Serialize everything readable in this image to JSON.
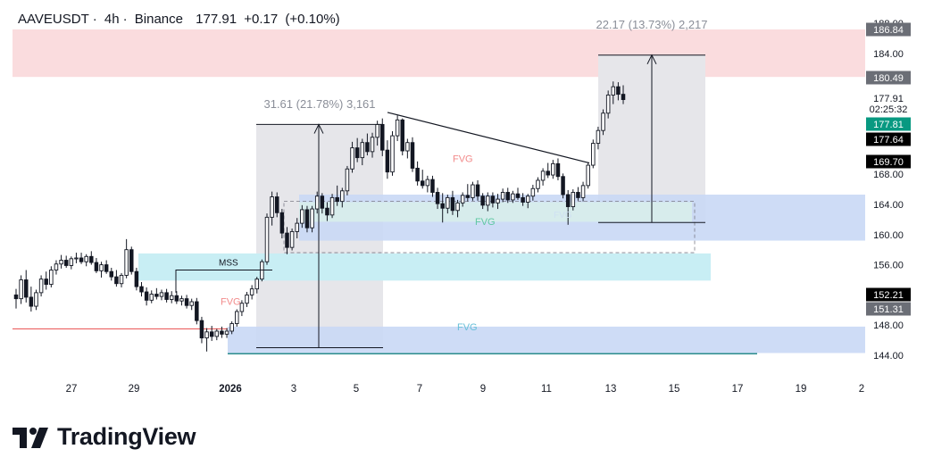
{
  "header": {
    "symbol": "AAVEUSDT",
    "interval": "4h",
    "exchange": "Binance",
    "price": "177.91",
    "change": "+0.17",
    "change_pct": "(+0.10%)"
  },
  "brand": {
    "name": "TradingView"
  },
  "colors": {
    "up_candle": "#ffffff",
    "down_candle": "#131722",
    "supply_zone": "#f9d6d8",
    "demand_zone": "#c9d8f5",
    "fvg_zone": "#c8eef4",
    "measure_box": "#e6e6ea",
    "last_price": "#089981",
    "current_price_label": "#000000"
  },
  "chart_data": {
    "type": "candlestick",
    "x_tick_labels": [
      "27",
      "29",
      "2026",
      "3",
      "5",
      "7",
      "9",
      "11",
      "13",
      "15",
      "17",
      "19",
      "2"
    ],
    "y_tick_labels": [
      "188.00",
      "184.00",
      "168.00",
      "164.00",
      "160.00",
      "156.00",
      "148.00",
      "144.00"
    ],
    "y_range": [
      143,
      189
    ],
    "price_labels": [
      {
        "value": "186.84",
        "style": "grey"
      },
      {
        "value": "180.49",
        "style": "grey"
      },
      {
        "value": "177.91",
        "style": "plain"
      },
      {
        "value": "02:25:32",
        "style": "plain"
      },
      {
        "value": "177.81",
        "style": "green"
      },
      {
        "value": "177.64",
        "style": "black"
      },
      {
        "value": "169.70",
        "style": "black"
      },
      {
        "value": "152.21",
        "style": "black"
      },
      {
        "value": "151.31",
        "style": "grey"
      }
    ],
    "annotations": {
      "measure_1": "31.61 (21.78%) 3,161",
      "measure_2": "22.17 (13.73%) 2,217",
      "mss": "MSS",
      "fvg_labels": [
        "FVG",
        "FVG",
        "FVG",
        "FVG",
        "FVG"
      ]
    },
    "zones": [
      {
        "name": "supply",
        "from": "Jan 13 (est.)",
        "to": "end",
        "low": 180.9,
        "high": 187.2
      },
      {
        "name": "fvg-cyan",
        "low": 153.9,
        "high": 157.5
      },
      {
        "name": "demand-upper",
        "low": 159.2,
        "high": 165.3
      },
      {
        "name": "demand-lower",
        "low": 144.3,
        "high": 147.8
      }
    ],
    "candles": [
      [
        0,
        152,
        152.8,
        150.2,
        151.5
      ],
      [
        1,
        151.5,
        154.6,
        150.8,
        154
      ],
      [
        2,
        154,
        155.3,
        151,
        151.7
      ],
      [
        3,
        151.7,
        153.1,
        149.8,
        150.5
      ],
      [
        4,
        150.5,
        152.7,
        150,
        152.3
      ],
      [
        5,
        152.3,
        154.6,
        151.8,
        154.1
      ],
      [
        6,
        154.1,
        155.1,
        152.7,
        153.4
      ],
      [
        7,
        153.4,
        155.8,
        153,
        155.3
      ],
      [
        8,
        155.3,
        156.6,
        154.7,
        156.1
      ],
      [
        9,
        156.1,
        157.3,
        155.5,
        156.6
      ],
      [
        10,
        156.6,
        157.2,
        155.6,
        155.9
      ],
      [
        11,
        155.9,
        157.1,
        155.4,
        156.8
      ],
      [
        12,
        156.8,
        157.6,
        156.2,
        156.9
      ],
      [
        13,
        156.9,
        157.6,
        156.1,
        156.4
      ],
      [
        14,
        156.4,
        157.4,
        155.8,
        157.1
      ],
      [
        15,
        157.1,
        157.8,
        156,
        156.3
      ],
      [
        16,
        156.3,
        156.9,
        154.9,
        155.2
      ],
      [
        17,
        155.2,
        156.4,
        154.3,
        156
      ],
      [
        18,
        156,
        156.6,
        154.8,
        155.1
      ],
      [
        19,
        155.1,
        155.6,
        153.9,
        154.4
      ],
      [
        20,
        154.4,
        155.3,
        153.1,
        153.5
      ],
      [
        21,
        153.5,
        154.9,
        153,
        154.6
      ],
      [
        22,
        154.6,
        159.4,
        154.2,
        158
      ],
      [
        23,
        158,
        158.4,
        154.7,
        155.1
      ],
      [
        24,
        155.1,
        155.6,
        152.6,
        153.1
      ],
      [
        25,
        153.1,
        153.7,
        151.8,
        152.4
      ],
      [
        26,
        152.4,
        153,
        150.6,
        151.3
      ],
      [
        27,
        151.3,
        152.6,
        150.9,
        152.1
      ],
      [
        28,
        152.1,
        152.9,
        151.4,
        151.8
      ],
      [
        29,
        151.8,
        152.7,
        151.3,
        152.3
      ],
      [
        30,
        152.3,
        152.8,
        151,
        151.4
      ],
      [
        31,
        151.4,
        152.5,
        150.9,
        151.9
      ],
      [
        32,
        151.9,
        152.5,
        150.8,
        151.2
      ],
      [
        33,
        151.2,
        151.9,
        150.6,
        151.5
      ],
      [
        34,
        151.5,
        152,
        150.2,
        150.6
      ],
      [
        35,
        150.6,
        151.5,
        150,
        151.1
      ],
      [
        36,
        151.1,
        151.6,
        148.1,
        148.6
      ],
      [
        37,
        148.6,
        149.1,
        145.6,
        146.3
      ],
      [
        38,
        146.3,
        147.6,
        144.5,
        147.1
      ],
      [
        39,
        147.1,
        147.9,
        145.9,
        146.5
      ],
      [
        40,
        146.5,
        147.5,
        146,
        147.2
      ],
      [
        41,
        147.2,
        147.8,
        146.3,
        146.8
      ],
      [
        42,
        146.8,
        147.6,
        146.3,
        147.2
      ],
      [
        43,
        147.2,
        148.5,
        146.8,
        148.2
      ],
      [
        44,
        148.2,
        150.1,
        147.8,
        149.8
      ],
      [
        45,
        149.8,
        151.3,
        149.2,
        150.9
      ],
      [
        46,
        150.9,
        152.4,
        150.4,
        152
      ],
      [
        47,
        152,
        153.3,
        151.4,
        152.8
      ],
      [
        48,
        152.8,
        154.4,
        152.2,
        154.1
      ],
      [
        49,
        154.1,
        156.7,
        153.8,
        156.4
      ],
      [
        50,
        156.4,
        162.8,
        156,
        162.3
      ],
      [
        51,
        162.3,
        165.7,
        161.2,
        165
      ],
      [
        52,
        165,
        165.6,
        162.3,
        162.9
      ],
      [
        53,
        162.9,
        163.4,
        159.5,
        160.2
      ],
      [
        54,
        160.2,
        161,
        157.4,
        158.3
      ],
      [
        55,
        158.3,
        160.8,
        157.9,
        160.4
      ],
      [
        56,
        160.4,
        162.2,
        159.5,
        161.5
      ],
      [
        57,
        161.5,
        163.9,
        160.9,
        163.3
      ],
      [
        58,
        163.3,
        163.8,
        160.3,
        160.9
      ],
      [
        59,
        160.9,
        163.8,
        160.3,
        163.4
      ],
      [
        60,
        163.4,
        165.7,
        162.8,
        165.1
      ],
      [
        61,
        165.1,
        165.5,
        162.8,
        163.5
      ],
      [
        62,
        163.5,
        164.3,
        161.8,
        162.6
      ],
      [
        63,
        162.6,
        165.4,
        162.2,
        164.9
      ],
      [
        64,
        164.9,
        166.5,
        163.8,
        164.4
      ],
      [
        65,
        164.4,
        166.2,
        163.6,
        165.8
      ],
      [
        66,
        165.8,
        169.1,
        165.2,
        168.7
      ],
      [
        67,
        168.7,
        172.3,
        168.2,
        171.5
      ],
      [
        68,
        171.5,
        172.8,
        169.6,
        170.2
      ],
      [
        69,
        170.2,
        172.7,
        169.2,
        172.2
      ],
      [
        70,
        172.2,
        173.4,
        170.5,
        171
      ],
      [
        71,
        171,
        173.5,
        170.2,
        172.9
      ],
      [
        72,
        172.9,
        175.1,
        171.8,
        174.6
      ],
      [
        73,
        174.6,
        175.4,
        170.4,
        171.2
      ],
      [
        74,
        171.2,
        172.5,
        167.4,
        168.3
      ],
      [
        75,
        168.3,
        173.7,
        167.8,
        173.1
      ],
      [
        76,
        173.1,
        175.8,
        172.4,
        175.2
      ],
      [
        77,
        175.2,
        175.4,
        170.5,
        171.1
      ],
      [
        78,
        171.1,
        172.7,
        170.1,
        172.2
      ],
      [
        79,
        172.2,
        172.9,
        168.3,
        168.8
      ],
      [
        80,
        168.8,
        169.7,
        166.5,
        167.1
      ],
      [
        81,
        167.1,
        168.6,
        166.1,
        166.5
      ],
      [
        82,
        166.5,
        167.8,
        165.6,
        167.3
      ],
      [
        83,
        167.3,
        167.8,
        165,
        165.6
      ],
      [
        84,
        165.6,
        166.2,
        163.4,
        164.1
      ],
      [
        85,
        164.1,
        165.5,
        161.6,
        163.5
      ],
      [
        86,
        163.5,
        165.3,
        162.8,
        164.9
      ],
      [
        87,
        164.9,
        165.8,
        162.6,
        163.2
      ],
      [
        88,
        163.2,
        164.6,
        162.3,
        164.2
      ],
      [
        89,
        164.2,
        165.6,
        163.7,
        165.2
      ],
      [
        90,
        165.2,
        166.7,
        164.4,
        164.9
      ],
      [
        91,
        164.9,
        167,
        164.5,
        166.6
      ],
      [
        92,
        166.6,
        167.2,
        164.5,
        165.1
      ],
      [
        93,
        165.1,
        165.5,
        163.4,
        163.9
      ],
      [
        94,
        163.9,
        165.6,
        163.1,
        165.1
      ],
      [
        95,
        165.1,
        165.6,
        163.6,
        164.2
      ],
      [
        96,
        164.2,
        165.4,
        163.4,
        164.7
      ],
      [
        97,
        164.7,
        166.1,
        164.3,
        165.6
      ],
      [
        98,
        165.6,
        166.2,
        164.2,
        164.6
      ],
      [
        99,
        164.6,
        165.8,
        164.2,
        165.4
      ],
      [
        100,
        165.4,
        166.2,
        164.6,
        164.9
      ],
      [
        101,
        164.9,
        165.5,
        163.8,
        164.3
      ],
      [
        102,
        164.3,
        165.4,
        163.5,
        165.1
      ],
      [
        103,
        165.1,
        166.6,
        164.5,
        166.1
      ],
      [
        104,
        166.1,
        167.6,
        165.6,
        167.2
      ],
      [
        105,
        167.2,
        168.8,
        166.5,
        168.4
      ],
      [
        106,
        168.4,
        169.5,
        167.5,
        167.9
      ],
      [
        107,
        167.9,
        169.9,
        167.4,
        169.4
      ],
      [
        108,
        169.4,
        170.1,
        167.2,
        167.7
      ],
      [
        109,
        167.7,
        168.1,
        164.8,
        165.3
      ],
      [
        110,
        165.3,
        165.9,
        161.3,
        163.7
      ],
      [
        111,
        163.7,
        166,
        163.2,
        165.6
      ],
      [
        112,
        165.6,
        166.3,
        164.5,
        164.9
      ],
      [
        113,
        164.9,
        167,
        164.4,
        166.5
      ],
      [
        114,
        166.5,
        169.6,
        166.1,
        169.2
      ],
      [
        115,
        169.2,
        172.6,
        168.8,
        172.1
      ],
      [
        116,
        172.1,
        174.3,
        171.3,
        173.8
      ],
      [
        117,
        173.8,
        176.6,
        173.2,
        176.1
      ],
      [
        118,
        176.1,
        179.1,
        175.4,
        178.5
      ],
      [
        119,
        178.5,
        180.3,
        177.3,
        179.6
      ],
      [
        120,
        179.6,
        180.2,
        177.8,
        178.6
      ],
      [
        121,
        178.6,
        179.8,
        177.3,
        177.9
      ]
    ]
  }
}
